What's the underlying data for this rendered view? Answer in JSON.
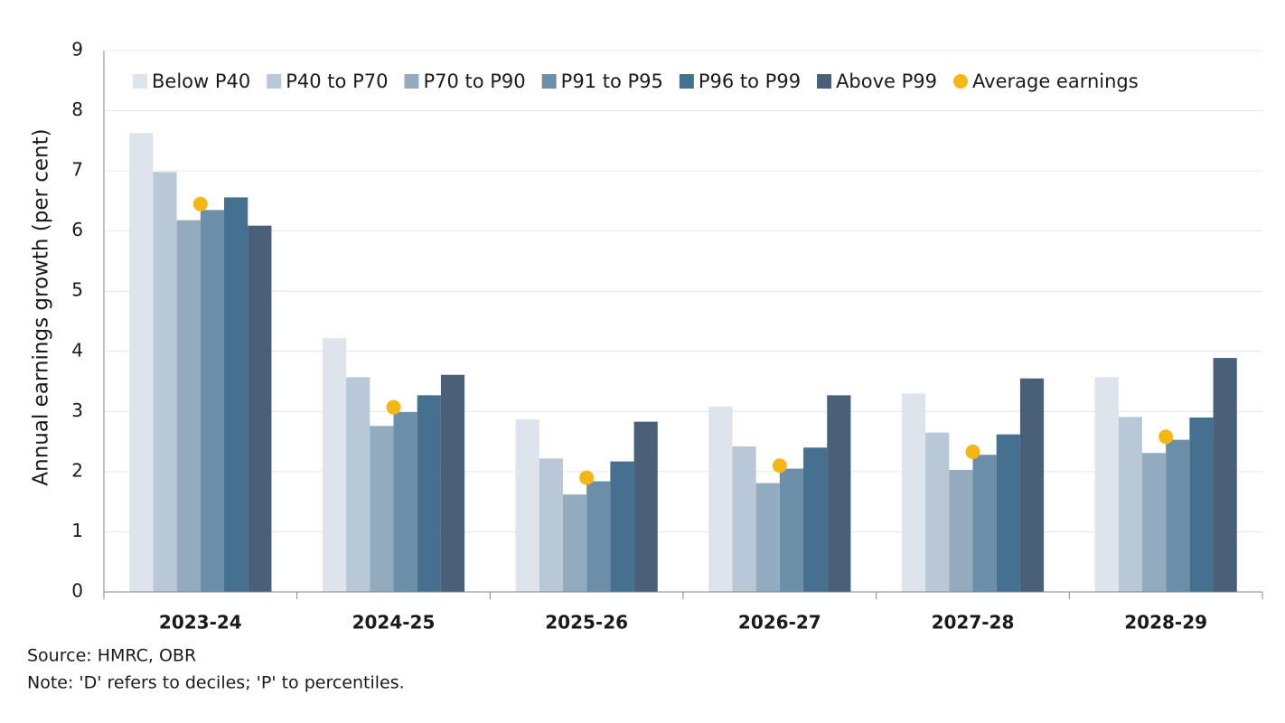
{
  "chart_data": {
    "type": "bar",
    "y_label": "Annual earnings growth (per cent)",
    "categories": [
      "2023-24",
      "2024-25",
      "2025-26",
      "2026-27",
      "2027-28",
      "2028-29"
    ],
    "series": [
      {
        "name": "Below P40",
        "color": "#dde4ec",
        "values": [
          7.63,
          4.22,
          2.87,
          3.08,
          3.3,
          3.57
        ]
      },
      {
        "name": "P40 to P70",
        "color": "#b8c8d6",
        "values": [
          6.98,
          3.57,
          2.22,
          2.42,
          2.65,
          2.91
        ]
      },
      {
        "name": "P70 to P90",
        "color": "#93abbf",
        "values": [
          6.18,
          2.76,
          1.62,
          1.81,
          2.03,
          2.31
        ]
      },
      {
        "name": "P91 to P95",
        "color": "#6b8fa9",
        "values": [
          6.35,
          2.99,
          1.84,
          2.05,
          2.28,
          2.53
        ]
      },
      {
        "name": "P96 to P99",
        "color": "#46708f",
        "values": [
          6.56,
          3.27,
          2.17,
          2.4,
          2.62,
          2.9
        ]
      },
      {
        "name": "Above P99",
        "color": "#4a6079",
        "values": [
          6.09,
          3.61,
          2.83,
          3.27,
          3.55,
          3.89
        ]
      },
      {
        "name": "Average earnings",
        "color": "#f5b716",
        "marker": "circle",
        "values": [
          6.45,
          3.07,
          1.9,
          2.1,
          2.33,
          2.58
        ]
      }
    ],
    "ylim": [
      0,
      9
    ],
    "yticks": [
      0,
      1,
      2,
      3,
      4,
      5,
      6,
      7,
      8,
      9
    ],
    "grid": true,
    "source": "Source: HMRC, OBR",
    "note": "Note: 'D' refers to deciles; 'P' to percentiles."
  }
}
